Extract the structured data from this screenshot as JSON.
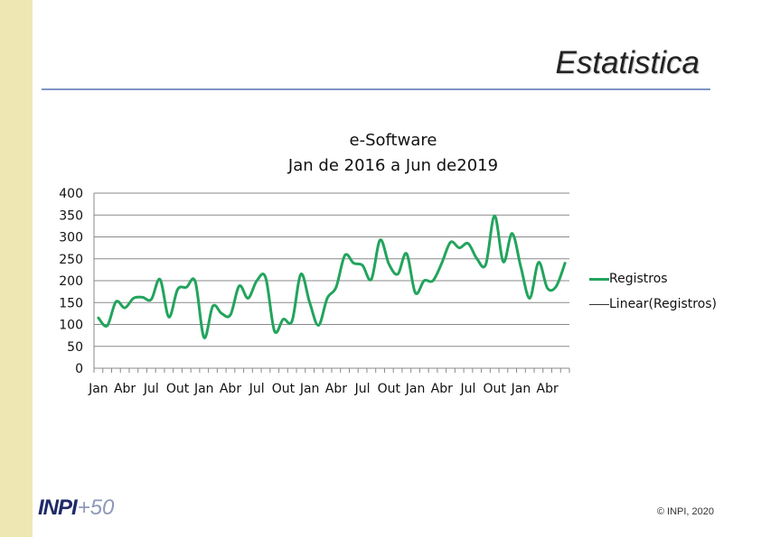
{
  "slide": {
    "title": "Estatistica",
    "logo_text": "INPI",
    "logo_suffix": "+50",
    "copyright": "© INPI, 2020"
  },
  "colors": {
    "series": "#22a45d",
    "axis": "#8a8a8a",
    "sidebar": "#efe7b3",
    "title_rule": "#7f95c4"
  },
  "chart_data": {
    "type": "line",
    "title": "e-Software",
    "subtitle": "Jan de 2016 a Jun de2019",
    "ylim": [
      0,
      400
    ],
    "yticks": [
      0,
      50,
      100,
      150,
      200,
      250,
      300,
      350,
      400
    ],
    "grid": true,
    "legend_position": "right",
    "x_tick_labels": [
      "Jan",
      "Abr",
      "Jul",
      "Out",
      "Jan",
      "Abr",
      "Jul",
      "Out",
      "Jan",
      "Abr",
      "Jul",
      "Out",
      "Jan",
      "Abr",
      "Jul",
      "Out",
      "Jan",
      "Abr"
    ],
    "series": [
      {
        "name": "Registros",
        "values": [
          115,
          97,
          152,
          138,
          160,
          162,
          157,
          203,
          117,
          180,
          185,
          198,
          70,
          142,
          125,
          122,
          188,
          160,
          200,
          207,
          85,
          112,
          108,
          215,
          150,
          98,
          160,
          185,
          258,
          240,
          235,
          203,
          293,
          238,
          215,
          262,
          172,
          200,
          200,
          240,
          288,
          275,
          285,
          250,
          237,
          348,
          243,
          308,
          230,
          160,
          242,
          183,
          187,
          240
        ]
      },
      {
        "name": "Linear(Registros)",
        "values": []
      }
    ]
  }
}
